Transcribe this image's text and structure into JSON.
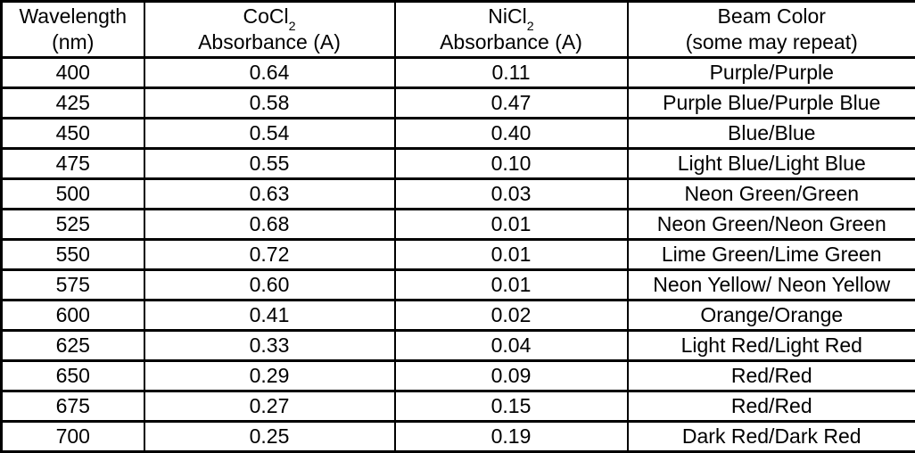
{
  "table": {
    "headers": [
      {
        "title": "Wavelength",
        "subtitle": "(nm)"
      },
      {
        "title": "CoCl",
        "title_sub": "2",
        "subtitle": "Absorbance (A)"
      },
      {
        "title": "NiCl",
        "title_sub": "2",
        "subtitle": "Absorbance (A)"
      },
      {
        "title": "Beam Color",
        "subtitle": "(some may repeat)"
      }
    ],
    "rows": [
      {
        "wavelength": "400",
        "cocl2_absorbance": "0.64",
        "nicl2_absorbance": "0.11",
        "beam_color": "Purple/Purple"
      },
      {
        "wavelength": "425",
        "cocl2_absorbance": "0.58",
        "nicl2_absorbance": "0.47",
        "beam_color": "Purple Blue/Purple Blue"
      },
      {
        "wavelength": "450",
        "cocl2_absorbance": "0.54",
        "nicl2_absorbance": "0.40",
        "beam_color": "Blue/Blue"
      },
      {
        "wavelength": "475",
        "cocl2_absorbance": "0.55",
        "nicl2_absorbance": "0.10",
        "beam_color": "Light Blue/Light Blue"
      },
      {
        "wavelength": "500",
        "cocl2_absorbance": "0.63",
        "nicl2_absorbance": "0.03",
        "beam_color": "Neon Green/Green"
      },
      {
        "wavelength": "525",
        "cocl2_absorbance": "0.68",
        "nicl2_absorbance": "0.01",
        "beam_color": "Neon Green/Neon Green"
      },
      {
        "wavelength": "550",
        "cocl2_absorbance": "0.72",
        "nicl2_absorbance": "0.01",
        "beam_color": "Lime Green/Lime Green"
      },
      {
        "wavelength": "575",
        "cocl2_absorbance": "0.60",
        "nicl2_absorbance": "0.01",
        "beam_color": "Neon Yellow/ Neon Yellow"
      },
      {
        "wavelength": "600",
        "cocl2_absorbance": "0.41",
        "nicl2_absorbance": "0.02",
        "beam_color": "Orange/Orange"
      },
      {
        "wavelength": "625",
        "cocl2_absorbance": "0.33",
        "nicl2_absorbance": "0.04",
        "beam_color": "Light Red/Light Red"
      },
      {
        "wavelength": "650",
        "cocl2_absorbance": "0.29",
        "nicl2_absorbance": "0.09",
        "beam_color": "Red/Red"
      },
      {
        "wavelength": "675",
        "cocl2_absorbance": "0.27",
        "nicl2_absorbance": "0.15",
        "beam_color": "Red/Red"
      },
      {
        "wavelength": "700",
        "cocl2_absorbance": "0.25",
        "nicl2_absorbance": "0.19",
        "beam_color": "Dark Red/Dark Red"
      }
    ]
  },
  "chart_data": {
    "type": "table",
    "columns": [
      "Wavelength (nm)",
      "CoCl2 Absorbance (A)",
      "NiCl2 Absorbance (A)",
      "Beam Color (some may repeat)"
    ],
    "x": [
      400,
      425,
      450,
      475,
      500,
      525,
      550,
      575,
      600,
      625,
      650,
      675,
      700
    ],
    "xlabel": "Wavelength (nm)",
    "ylabel": "Absorbance (A)",
    "series": [
      {
        "name": "CoCl2 Absorbance (A)",
        "values": [
          0.64,
          0.58,
          0.54,
          0.55,
          0.63,
          0.68,
          0.72,
          0.6,
          0.41,
          0.33,
          0.29,
          0.27,
          0.25
        ]
      },
      {
        "name": "NiCl2 Absorbance (A)",
        "values": [
          0.11,
          0.47,
          0.4,
          0.1,
          0.03,
          0.01,
          0.01,
          0.01,
          0.02,
          0.04,
          0.09,
          0.15,
          0.19
        ]
      }
    ],
    "beam_colors": [
      "Purple/Purple",
      "Purple Blue/Purple Blue",
      "Blue/Blue",
      "Light Blue/Light Blue",
      "Neon Green/Green",
      "Neon Green/Neon Green",
      "Lime Green/Lime Green",
      "Neon Yellow/ Neon Yellow",
      "Orange/Orange",
      "Light Red/Light Red",
      "Red/Red",
      "Red/Red",
      "Dark Red/Dark Red"
    ],
    "colors": {
      "border": "#000000",
      "text": "#000000",
      "background": "#ffffff"
    }
  }
}
